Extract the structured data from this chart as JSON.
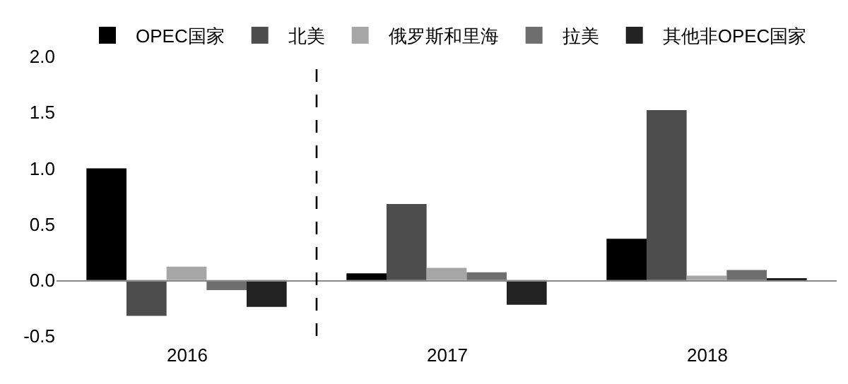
{
  "chart_data": {
    "type": "bar",
    "x": [
      2016,
      2017,
      2018
    ],
    "xlim": [
      2015.5,
      2018.5
    ],
    "xticks": [
      2016,
      2017,
      2018
    ],
    "ylim": [
      -0.5,
      2.0
    ],
    "yticks": [
      {
        "value": -0.5,
        "label": "-0.5"
      },
      {
        "value": 0,
        "label": "0.0"
      },
      {
        "value": 0.5,
        "label": "0.5"
      },
      {
        "value": 1.0,
        "label": "1.0"
      },
      {
        "value": 1.5,
        "label": "1.5"
      },
      {
        "value": 2.0,
        "label": "2.0"
      }
    ],
    "legend": "top",
    "series": [
      {
        "name": "OPEC国家",
        "color": "#000000",
        "values": [
          1.0,
          0.06,
          0.37
        ]
      },
      {
        "name": "北美",
        "color": "#4d4d4d",
        "values": [
          -0.32,
          0.68,
          1.52
        ]
      },
      {
        "name": "俄罗斯和里海",
        "color": "#a6a6a6",
        "values": [
          0.12,
          0.11,
          0.04
        ]
      },
      {
        "name": "拉美",
        "color": "#6e6e6e",
        "values": [
          -0.09,
          0.07,
          0.09
        ]
      },
      {
        "name": "其他非OPEC国家",
        "color": "#222222",
        "values": [
          -0.24,
          -0.22,
          0.01
        ]
      }
    ],
    "ref_lines": [
      {
        "axis": "x",
        "value": 2016.5,
        "label": null,
        "color": "#000000",
        "line_style": "dashed"
      }
    ]
  }
}
